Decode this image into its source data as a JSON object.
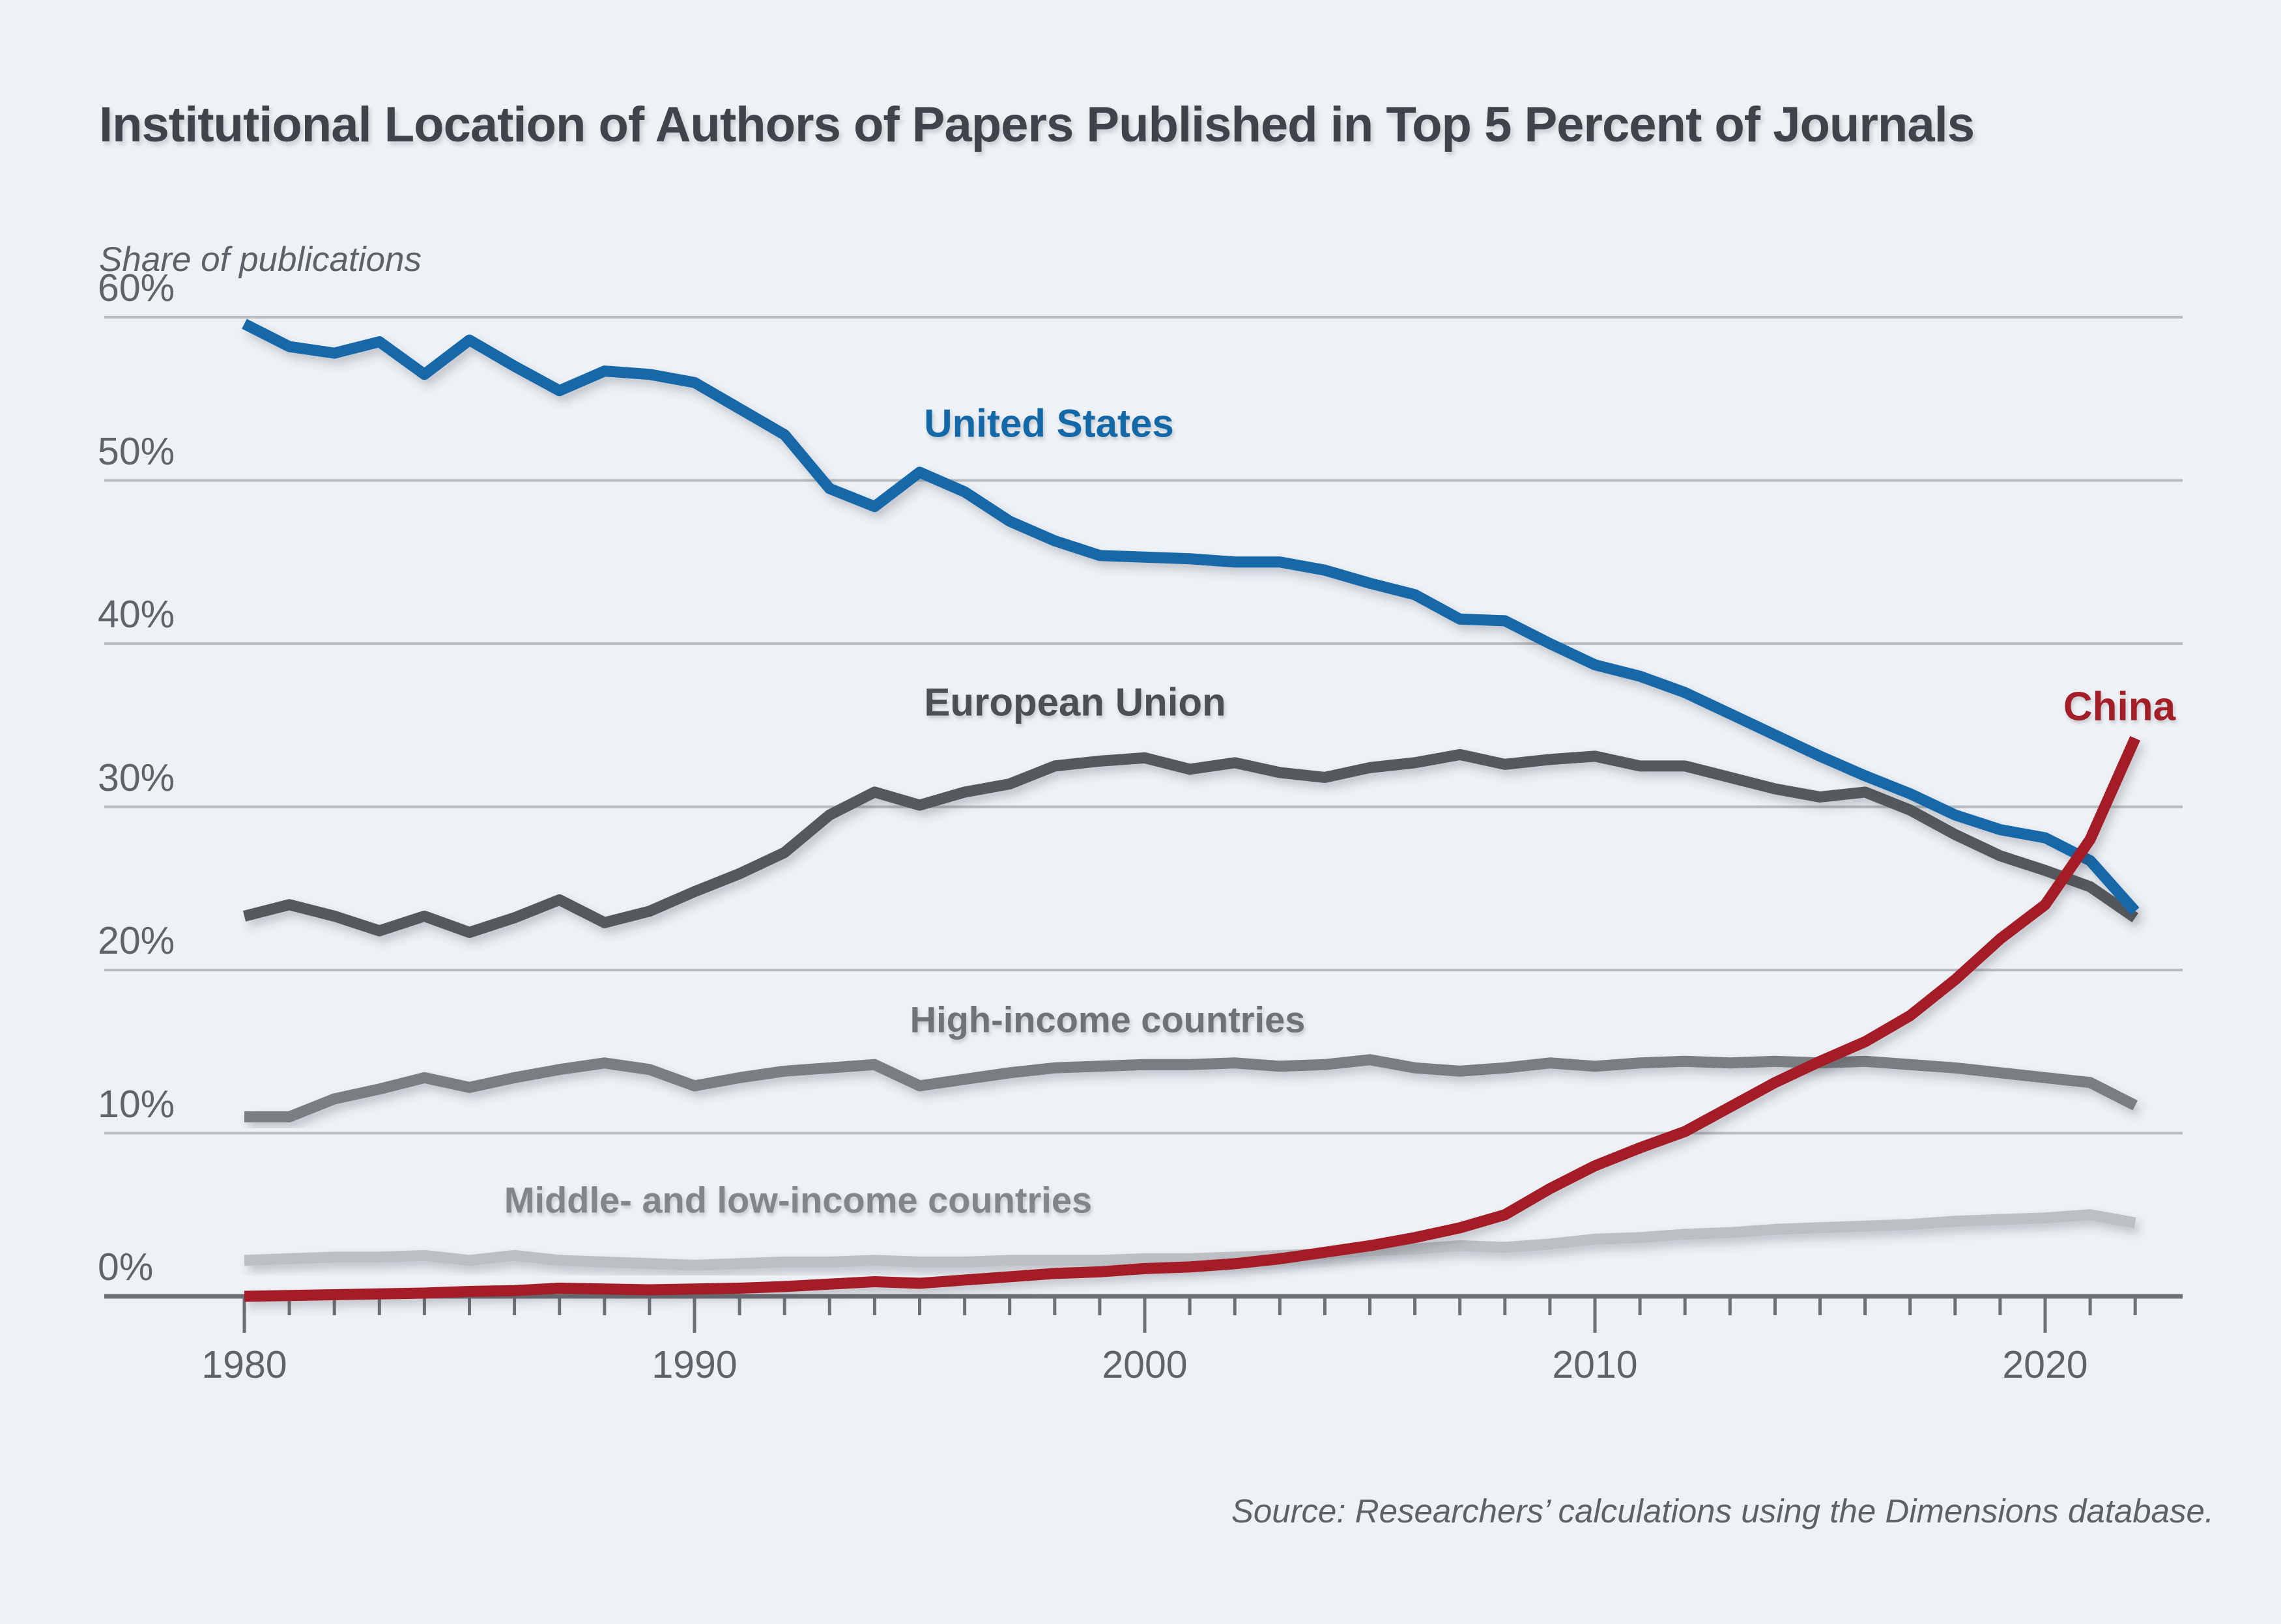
{
  "header": {
    "title": "Institutional Location of Authors of Papers Published in Top 5 Percent of Journals"
  },
  "chart": {
    "y_axis_label": "Share of publications",
    "y_tick_labels": [
      "60%",
      "50%",
      "40%",
      "30%",
      "20%",
      "10%",
      "0%"
    ],
    "x_tick_labels": [
      "1980",
      "1990",
      "2000",
      "2010",
      "2020"
    ],
    "source": "Source: Researchers’ calculations using the Dimensions database."
  },
  "series_labels": {
    "united_states": "United States",
    "european_union": "European Union",
    "china": "China",
    "high_income": "High-income countries",
    "middle_low_income": "Middle- and low-income countries"
  },
  "colors": {
    "background": "#eef2f7",
    "title_text": "#3f444a",
    "gridline": "#b9bdc1",
    "axis": "#6d7176",
    "tick_label": "#5f646a",
    "united_states": "#1368a8",
    "european_union": "#54585d",
    "china": "#a41e28",
    "high_income": "#7a7e83",
    "middle_low_income": "#bcc0c4"
  },
  "chart_data": {
    "type": "line",
    "title": "Institutional Location of Authors of Papers Published in Top 5 Percent of Journals",
    "xlabel": "",
    "ylabel": "Share of publications",
    "ylim": [
      0,
      60
    ],
    "xlim": [
      1980,
      2022
    ],
    "grid": "horizontal",
    "legend_position": "inline-labels",
    "y_tick_values": [
      60,
      50,
      40,
      30,
      20,
      10,
      0
    ],
    "x_tick_values": [
      1980,
      1990,
      2000,
      2010,
      2020
    ],
    "x": [
      1980,
      1981,
      1982,
      1983,
      1984,
      1985,
      1986,
      1987,
      1988,
      1989,
      1990,
      1991,
      1992,
      1993,
      1994,
      1995,
      1996,
      1997,
      1998,
      1999,
      2000,
      2001,
      2002,
      2003,
      2004,
      2005,
      2006,
      2007,
      2008,
      2009,
      2010,
      2011,
      2012,
      2013,
      2014,
      2015,
      2016,
      2017,
      2018,
      2019,
      2020,
      2021,
      2022
    ],
    "series": [
      {
        "id": "middle_low",
        "name": "Middle- and low-income countries",
        "color": "#bcc0c4",
        "values": [
          2.2,
          2.3,
          2.4,
          2.4,
          2.5,
          2.2,
          2.5,
          2.2,
          2.1,
          2.0,
          1.9,
          2.0,
          2.1,
          2.1,
          2.2,
          2.1,
          2.1,
          2.2,
          2.2,
          2.2,
          2.3,
          2.3,
          2.4,
          2.5,
          2.6,
          2.8,
          2.9,
          3.1,
          3.0,
          3.2,
          3.5,
          3.6,
          3.8,
          3.9,
          4.1,
          4.2,
          4.3,
          4.4,
          4.6,
          4.7,
          4.8,
          5.0,
          4.5
        ]
      },
      {
        "id": "high_income",
        "name": "High-income countries",
        "color": "#7a7e83",
        "values": [
          11.0,
          11.0,
          12.1,
          12.7,
          13.4,
          12.8,
          13.4,
          13.9,
          14.3,
          13.9,
          12.9,
          13.4,
          13.8,
          14.0,
          14.2,
          12.9,
          13.3,
          13.7,
          14.0,
          14.1,
          14.2,
          14.2,
          14.3,
          14.1,
          14.2,
          14.5,
          14.0,
          13.8,
          14.0,
          14.3,
          14.1,
          14.3,
          14.4,
          14.3,
          14.4,
          14.3,
          14.4,
          14.2,
          14.0,
          13.7,
          13.4,
          13.1,
          11.7
        ]
      },
      {
        "id": "european_union",
        "name": "European Union",
        "color": "#54585d",
        "values": [
          23.3,
          24.0,
          23.3,
          22.4,
          23.3,
          22.3,
          23.2,
          24.3,
          22.9,
          23.6,
          24.8,
          25.9,
          27.2,
          29.5,
          30.9,
          30.1,
          30.9,
          31.4,
          32.5,
          32.8,
          33.0,
          32.3,
          32.7,
          32.1,
          31.8,
          32.4,
          32.7,
          33.2,
          32.6,
          32.9,
          33.1,
          32.5,
          32.5,
          31.8,
          31.1,
          30.6,
          30.9,
          29.8,
          28.3,
          27.0,
          26.1,
          25.1,
          23.2
        ]
      },
      {
        "id": "united_states",
        "name": "United States",
        "color": "#1368a8",
        "values": [
          59.6,
          58.2,
          57.8,
          58.5,
          56.5,
          58.6,
          57.0,
          55.5,
          56.7,
          56.5,
          56.0,
          54.4,
          52.8,
          49.5,
          48.4,
          50.5,
          49.3,
          47.5,
          46.3,
          45.4,
          45.3,
          45.2,
          45.0,
          45.0,
          44.5,
          43.7,
          43.0,
          41.5,
          41.4,
          40.0,
          38.7,
          38.0,
          37.0,
          35.7,
          34.4,
          33.1,
          31.9,
          30.8,
          29.5,
          28.6,
          28.1,
          26.7,
          23.6
        ]
      },
      {
        "id": "china",
        "name": "China",
        "color": "#a41e28",
        "values": [
          0.0,
          0.05,
          0.1,
          0.15,
          0.2,
          0.3,
          0.35,
          0.5,
          0.45,
          0.4,
          0.45,
          0.5,
          0.6,
          0.75,
          0.9,
          0.8,
          1.0,
          1.2,
          1.4,
          1.5,
          1.7,
          1.8,
          2.0,
          2.3,
          2.7,
          3.1,
          3.6,
          4.2,
          5.0,
          6.6,
          8.0,
          9.1,
          10.1,
          11.6,
          13.1,
          14.4,
          15.6,
          17.2,
          19.4,
          21.9,
          24.0,
          28.0,
          34.2
        ]
      }
    ]
  }
}
